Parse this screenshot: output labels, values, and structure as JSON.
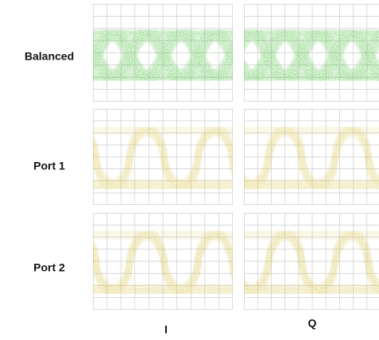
{
  "row_labels": [
    "Balanced",
    "Port 1",
    "Port 2"
  ],
  "column_labels": [
    "I",
    "Q"
  ]
}
